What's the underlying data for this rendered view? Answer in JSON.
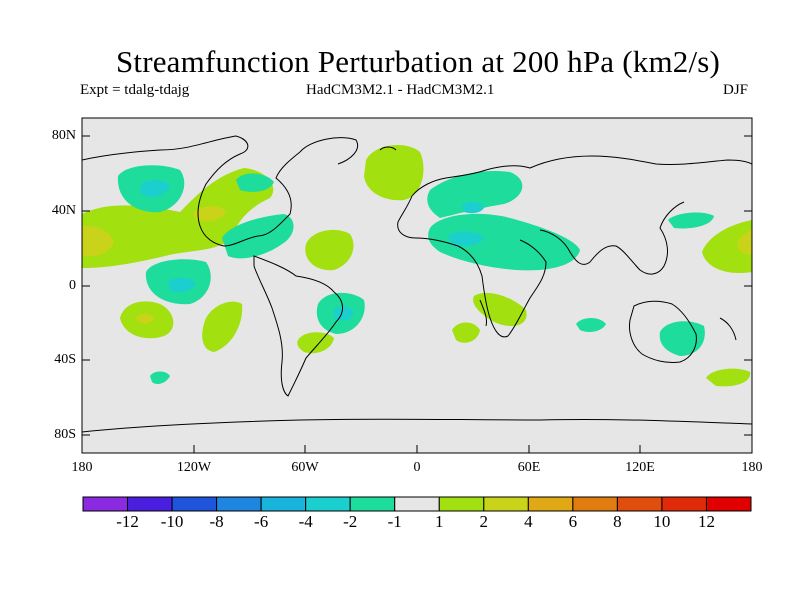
{
  "title": "Streamfunction Perturbation at 200 hPa (km2/s)",
  "subtitle_left": "Expt = tdalg-tdajg",
  "subtitle_center": "HadCM3M2.1 - HadCM3M2.1",
  "subtitle_right": "DJF",
  "y_labels": [
    "80N",
    "40N",
    "0",
    "40S",
    "80S"
  ],
  "x_labels": [
    "180",
    "120W",
    "60W",
    "0",
    "60E",
    "120E",
    "180"
  ],
  "colorbar": {
    "labels": [
      "-12",
      "-10",
      "-8",
      "-6",
      "-4",
      "-2",
      "-1",
      "1",
      "2",
      "4",
      "6",
      "8",
      "10",
      "12"
    ],
    "colors": [
      "#8a2be2",
      "#4b1fe0",
      "#1f55dc",
      "#1e86de",
      "#19b4dc",
      "#1ccfcf",
      "#1ddc9c",
      "#e6e6e6",
      "#a2e010",
      "#c9d31a",
      "#e0a814",
      "#e07c10",
      "#e04d0c",
      "#e02a0a",
      "#e00000"
    ]
  },
  "colors": {
    "land_bg": "#e6e6e6",
    "coast": "#000000"
  }
}
